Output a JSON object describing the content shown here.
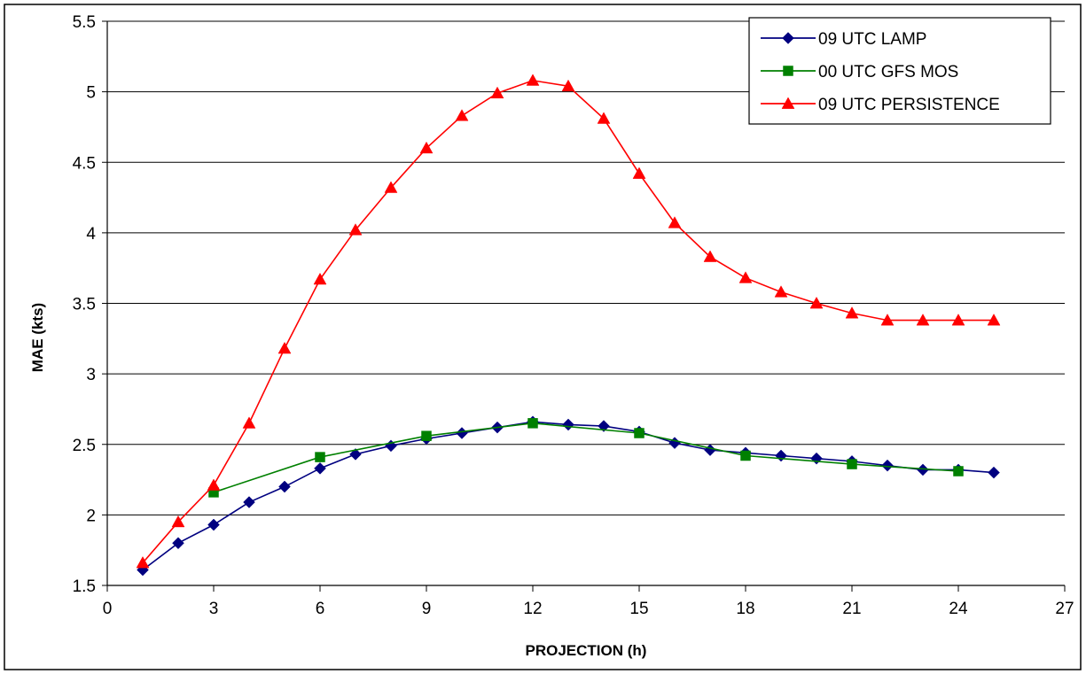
{
  "chart_data": {
    "type": "line",
    "xlabel": "PROJECTION (h)",
    "ylabel": "MAE (kts)",
    "xlim": [
      0,
      27
    ],
    "ylim": [
      1.5,
      5.5
    ],
    "x_ticks": [
      "0",
      "3",
      "6",
      "9",
      "12",
      "15",
      "18",
      "21",
      "24",
      "27"
    ],
    "y_ticks": [
      "1.5",
      "2",
      "2.5",
      "3",
      "3.5",
      "4",
      "4.5",
      "5",
      "5.5"
    ],
    "grid": "horizontal",
    "legend_position": "top-right",
    "series": [
      {
        "name": "09 UTC LAMP",
        "color": "#000080",
        "marker": "diamond",
        "x": [
          1,
          2,
          3,
          4,
          5,
          6,
          7,
          8,
          9,
          10,
          11,
          12,
          13,
          14,
          15,
          16,
          17,
          18,
          19,
          20,
          21,
          22,
          23,
          24,
          25
        ],
        "values": [
          1.61,
          1.8,
          1.93,
          2.09,
          2.2,
          2.33,
          2.43,
          2.49,
          2.54,
          2.58,
          2.62,
          2.66,
          2.64,
          2.63,
          2.59,
          2.51,
          2.46,
          2.44,
          2.42,
          2.4,
          2.38,
          2.35,
          2.32,
          2.32,
          2.3
        ]
      },
      {
        "name": "00 UTC GFS MOS",
        "color": "#008000",
        "marker": "square",
        "x": [
          3,
          6,
          9,
          12,
          15,
          18,
          21,
          24
        ],
        "values": [
          2.16,
          2.41,
          2.56,
          2.65,
          2.58,
          2.42,
          2.36,
          2.31
        ]
      },
      {
        "name": "09 UTC PERSISTENCE",
        "color": "#ff0000",
        "marker": "triangle",
        "x": [
          1,
          2,
          3,
          4,
          5,
          6,
          7,
          8,
          9,
          10,
          11,
          12,
          13,
          14,
          15,
          16,
          17,
          18,
          19,
          20,
          21,
          22,
          23,
          24,
          25
        ],
        "values": [
          1.66,
          1.95,
          2.21,
          2.65,
          3.18,
          3.67,
          4.02,
          4.32,
          4.6,
          4.83,
          4.99,
          5.08,
          5.04,
          4.81,
          4.42,
          4.07,
          3.83,
          3.68,
          3.58,
          3.5,
          3.43,
          3.38,
          3.38,
          3.38,
          3.38
        ]
      }
    ]
  }
}
